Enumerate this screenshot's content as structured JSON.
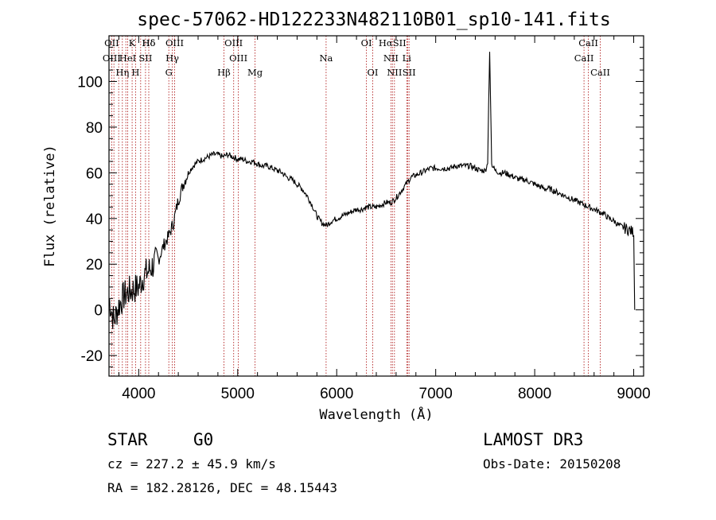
{
  "chart_data": {
    "type": "line",
    "title": "spec-57062-HD122233N482110B01_sp10-141.fits",
    "xlabel": "Wavelength (Å)",
    "ylabel": "Flux (relative)",
    "xlim": [
      3700,
      9100
    ],
    "ylim": [
      -29,
      120
    ],
    "xticks": [
      4000,
      5000,
      6000,
      7000,
      8000,
      9000
    ],
    "yticks": [
      -20,
      0,
      20,
      40,
      60,
      80,
      100
    ],
    "grid": false,
    "spectrum_points": [
      [
        3700,
        5
      ],
      [
        3750,
        -5
      ],
      [
        3800,
        2
      ],
      [
        3850,
        6
      ],
      [
        3900,
        8
      ],
      [
        3950,
        9
      ],
      [
        4000,
        10
      ],
      [
        4050,
        15
      ],
      [
        4100,
        17
      ],
      [
        4150,
        20
      ],
      [
        4200,
        22
      ],
      [
        4250,
        28
      ],
      [
        4300,
        32
      ],
      [
        4350,
        38
      ],
      [
        4400,
        48
      ],
      [
        4450,
        55
      ],
      [
        4500,
        60
      ],
      [
        4550,
        63
      ],
      [
        4600,
        65
      ],
      [
        4650,
        66
      ],
      [
        4700,
        67
      ],
      [
        4750,
        68
      ],
      [
        4800,
        68
      ],
      [
        4850,
        67
      ],
      [
        4900,
        68
      ],
      [
        4950,
        67
      ],
      [
        5000,
        66
      ],
      [
        5050,
        66
      ],
      [
        5100,
        65
      ],
      [
        5150,
        65
      ],
      [
        5200,
        64
      ],
      [
        5250,
        63
      ],
      [
        5300,
        63
      ],
      [
        5350,
        62
      ],
      [
        5400,
        61
      ],
      [
        5450,
        60
      ],
      [
        5500,
        58
      ],
      [
        5550,
        57
      ],
      [
        5600,
        55
      ],
      [
        5650,
        53
      ],
      [
        5700,
        50
      ],
      [
        5750,
        46
      ],
      [
        5800,
        41
      ],
      [
        5850,
        38
      ],
      [
        5900,
        37
      ],
      [
        5950,
        39
      ],
      [
        6000,
        40
      ],
      [
        6050,
        41
      ],
      [
        6100,
        42
      ],
      [
        6150,
        43
      ],
      [
        6200,
        44
      ],
      [
        6250,
        44
      ],
      [
        6300,
        45
      ],
      [
        6350,
        45
      ],
      [
        6400,
        45
      ],
      [
        6450,
        46
      ],
      [
        6500,
        47
      ],
      [
        6550,
        47
      ],
      [
        6600,
        49
      ],
      [
        6650,
        52
      ],
      [
        6700,
        55
      ],
      [
        6750,
        58
      ],
      [
        6800,
        59
      ],
      [
        6850,
        60
      ],
      [
        6900,
        61
      ],
      [
        6950,
        62
      ],
      [
        7000,
        62
      ],
      [
        7050,
        62
      ],
      [
        7100,
        62
      ],
      [
        7150,
        62
      ],
      [
        7200,
        63
      ],
      [
        7250,
        63
      ],
      [
        7300,
        63
      ],
      [
        7350,
        63
      ],
      [
        7400,
        62
      ],
      [
        7450,
        61
      ],
      [
        7500,
        61
      ],
      [
        7525,
        64
      ],
      [
        7535,
        90
      ],
      [
        7545,
        113
      ],
      [
        7555,
        90
      ],
      [
        7565,
        64
      ],
      [
        7600,
        61
      ],
      [
        7650,
        60
      ],
      [
        7700,
        60
      ],
      [
        7750,
        59
      ],
      [
        7800,
        58
      ],
      [
        7850,
        57
      ],
      [
        7900,
        57
      ],
      [
        7950,
        56
      ],
      [
        8000,
        55
      ],
      [
        8050,
        54
      ],
      [
        8100,
        53
      ],
      [
        8150,
        53
      ],
      [
        8200,
        52
      ],
      [
        8250,
        51
      ],
      [
        8300,
        50
      ],
      [
        8350,
        49
      ],
      [
        8400,
        48
      ],
      [
        8450,
        47
      ],
      [
        8500,
        46
      ],
      [
        8550,
        45
      ],
      [
        8600,
        44
      ],
      [
        8650,
        43
      ],
      [
        8700,
        42
      ],
      [
        8750,
        40
      ],
      [
        8800,
        39
      ],
      [
        8850,
        37
      ],
      [
        8900,
        36
      ],
      [
        8950,
        35
      ],
      [
        9000,
        34
      ],
      [
        9010,
        0
      ]
    ],
    "spectral_lines": [
      {
        "label": "Hδ",
        "wavelength": 4102
      },
      {
        "label": "K",
        "wavelength": 3934
      },
      {
        "label": "Hδ",
        "wavelength": 4102
      },
      {
        "label": "OIII",
        "wavelength": 4363
      },
      {
        "label": "OIII",
        "wavelength": 4959
      },
      {
        "label": "OI",
        "wavelength": 6300
      },
      {
        "label": "HαSII",
        "wavelength": 6563
      },
      {
        "label": "CaII",
        "wavelength": 8542
      },
      {
        "label": "OII",
        "wavelength": 3727
      },
      {
        "label": "HeI",
        "wavelength": 3889
      },
      {
        "label": "SII",
        "wavelength": 4069
      },
      {
        "label": "Hγ",
        "wavelength": 4340
      },
      {
        "label": "OIII",
        "wavelength": 5007
      },
      {
        "label": "Na",
        "wavelength": 5893
      },
      {
        "label": "NII",
        "wavelength": 6548
      },
      {
        "label": "Li",
        "wavelength": 6708
      },
      {
        "label": "CaII",
        "wavelength": 8498
      },
      {
        "label": "OIII",
        "wavelength": 3727
      },
      {
        "label": "Hη",
        "wavelength": 3835
      },
      {
        "label": "H",
        "wavelength": 3968
      },
      {
        "label": "G",
        "wavelength": 4304
      },
      {
        "label": "Hβ",
        "wavelength": 4861
      },
      {
        "label": "Mg",
        "wavelength": 5175
      },
      {
        "label": "OI",
        "wavelength": 6364
      },
      {
        "label": "NII",
        "wavelength": 6583
      },
      {
        "label": "SII",
        "wavelength": 6731
      },
      {
        "label": "CaII",
        "wavelength": 8662
      }
    ],
    "extra_line_positions": [
      3750,
      3798,
      3870,
      3934,
      4020,
      4102,
      4340,
      4363,
      4861,
      4959,
      5007,
      5175,
      5893,
      6300,
      6364,
      6548,
      6563,
      6583,
      6717,
      6731,
      8498,
      8542,
      8662
    ]
  },
  "info": {
    "object_class": "STAR",
    "subclass": "G0",
    "survey": "LAMOST DR3",
    "cz": "cz = 227.2 ± 45.9 km/s",
    "obs_date": "Obs-Date: 20150208",
    "coords": "RA = 182.28126, DEC =  48.15443"
  },
  "colors": {
    "spectrum": "#000000",
    "line_markers": "#b22222",
    "axes": "#000000",
    "background": "#ffffff"
  }
}
